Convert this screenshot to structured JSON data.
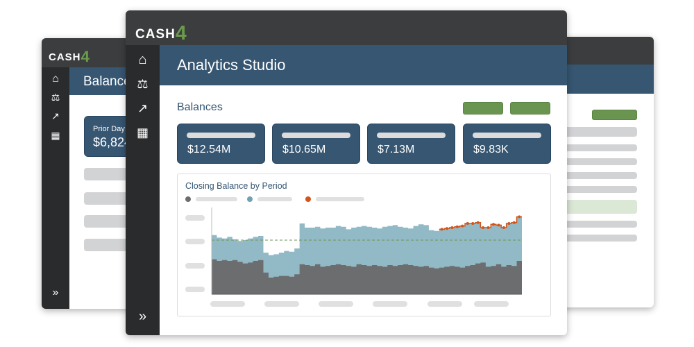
{
  "brand": {
    "name": "CASH",
    "digit": "4"
  },
  "back_left": {
    "title": "Balances",
    "card": {
      "label": "Prior Day",
      "value": "$6,824"
    }
  },
  "front": {
    "title": "Analytics Studio",
    "section": "Balances",
    "kpis": [
      {
        "value": "$12.54M"
      },
      {
        "value": "$10.65M"
      },
      {
        "value": "$7.13M"
      },
      {
        "value": "$9.83K"
      }
    ],
    "nav": [
      "home-icon",
      "scale-icon",
      "trend-icon",
      "dashboard-icon"
    ],
    "expand_icon": "»"
  },
  "colors": {
    "accent": "#365672",
    "green": "#6a9550",
    "gray_series": "#6c6d6f",
    "blue_series": "#92b9c6",
    "orange_series": "#d2541a"
  },
  "chart_data": {
    "type": "area",
    "title": "Closing Balance by Period",
    "ylim": [
      0,
      100
    ],
    "reference_line": 65,
    "series": [
      {
        "name": "gray",
        "values": [
          42,
          40,
          41,
          40,
          41,
          39,
          37,
          38,
          40,
          41,
          26,
          20,
          21,
          22,
          22,
          21,
          24,
          36,
          35,
          34,
          36,
          33,
          34,
          35,
          36,
          35,
          34,
          33,
          36,
          35,
          34,
          35,
          34,
          33,
          35,
          34,
          35,
          36,
          35,
          34,
          33,
          34,
          32,
          31,
          32,
          33,
          34,
          33,
          32,
          34,
          35,
          37,
          38,
          33,
          34,
          36,
          33,
          35,
          34,
          40
        ]
      },
      {
        "name": "blue_total",
        "values": [
          71,
          68,
          67,
          69,
          66,
          64,
          65,
          67,
          69,
          70,
          50,
          47,
          48,
          50,
          52,
          51,
          55,
          85,
          80,
          80,
          81,
          79,
          80,
          80,
          82,
          81,
          78,
          80,
          81,
          82,
          81,
          80,
          79,
          81,
          82,
          83,
          81,
          80,
          79,
          82,
          84,
          83,
          77,
          76,
          78,
          79,
          80,
          81,
          82,
          85,
          85,
          86,
          80,
          80,
          84,
          83,
          80,
          85,
          86,
          93
        ]
      },
      {
        "name": "orange_forecast",
        "start_index": 44
      }
    ]
  }
}
